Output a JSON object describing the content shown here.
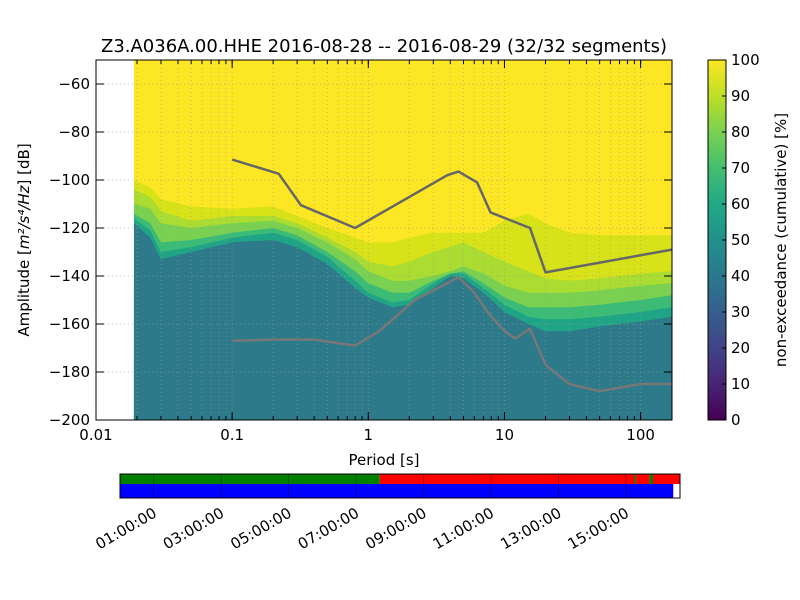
{
  "chart_data": {
    "type": "heatmap",
    "title": "Z3.A036A.00.HHE   2016-08-28 -- 2016-08-29  (32/32 segments)",
    "xlabel": "Period [s]",
    "ylabel_prefix": "Amplitude [",
    "ylabel_math": "m²/s⁴/Hz",
    "ylabel_suffix": "] [dB]",
    "x_scale": "log",
    "xlim": [
      0.01,
      170
    ],
    "ylim": [
      -200,
      -50
    ],
    "x_ticks": [
      {
        "value": 0.01,
        "label": "0.01"
      },
      {
        "value": 0.1,
        "label": "0.1"
      },
      {
        "value": 1,
        "label": "1"
      },
      {
        "value": 10,
        "label": "10"
      },
      {
        "value": 100,
        "label": "100"
      }
    ],
    "y_ticks": [
      {
        "value": -60,
        "label": "−60"
      },
      {
        "value": -80,
        "label": "−80"
      },
      {
        "value": -100,
        "label": "−100"
      },
      {
        "value": -120,
        "label": "−120"
      },
      {
        "value": -140,
        "label": "−140"
      },
      {
        "value": -160,
        "label": "−160"
      },
      {
        "value": -180,
        "label": "−180"
      },
      {
        "value": -200,
        "label": "−200"
      }
    ],
    "grid": true,
    "data_period_start": 0.019,
    "colorbar": {
      "label": "non-exceedance (cumulative) [%]",
      "range": [
        0,
        100
      ],
      "ticks": [
        {
          "value": 0,
          "label": "0"
        },
        {
          "value": 10,
          "label": "10"
        },
        {
          "value": 20,
          "label": "20"
        },
        {
          "value": 30,
          "label": "30"
        },
        {
          "value": 40,
          "label": "40"
        },
        {
          "value": 50,
          "label": "50"
        },
        {
          "value": 60,
          "label": "60"
        },
        {
          "value": 70,
          "label": "70"
        },
        {
          "value": 80,
          "label": "80"
        },
        {
          "value": 90,
          "label": "90"
        },
        {
          "value": 100,
          "label": "100"
        }
      ]
    },
    "level_bands": [
      {
        "level": 40,
        "color": "#2d7a8a",
        "upper": [
          [
            0.019,
            -118
          ],
          [
            0.025,
            -124
          ],
          [
            0.03,
            -133
          ],
          [
            0.05,
            -130
          ],
          [
            0.1,
            -126
          ],
          [
            0.2,
            -125
          ],
          [
            0.3,
            -128
          ],
          [
            0.5,
            -135
          ],
          [
            0.8,
            -145
          ],
          [
            1,
            -149
          ],
          [
            1.5,
            -153
          ],
          [
            2,
            -152
          ],
          [
            3,
            -145
          ],
          [
            4,
            -140
          ],
          [
            5,
            -141
          ],
          [
            7,
            -147
          ],
          [
            10,
            -155
          ],
          [
            15,
            -160
          ],
          [
            20,
            -163
          ],
          [
            30,
            -163
          ],
          [
            50,
            -161
          ],
          [
            100,
            -159
          ],
          [
            170,
            -157
          ]
        ]
      },
      {
        "level": 50,
        "color": "#20a486",
        "upper": [
          [
            0.019,
            -116
          ],
          [
            0.025,
            -121
          ],
          [
            0.03,
            -130
          ],
          [
            0.05,
            -128
          ],
          [
            0.1,
            -124
          ],
          [
            0.2,
            -122
          ],
          [
            0.3,
            -125
          ],
          [
            0.5,
            -132
          ],
          [
            0.8,
            -142
          ],
          [
            1,
            -147
          ],
          [
            1.5,
            -151
          ],
          [
            2,
            -150
          ],
          [
            3,
            -143
          ],
          [
            4,
            -139
          ],
          [
            5,
            -139
          ],
          [
            7,
            -145
          ],
          [
            10,
            -152
          ],
          [
            15,
            -157
          ],
          [
            20,
            -158
          ],
          [
            30,
            -158
          ],
          [
            50,
            -157
          ],
          [
            100,
            -155
          ],
          [
            170,
            -153
          ]
        ]
      },
      {
        "level": 60,
        "color": "#3bbb75",
        "upper": [
          [
            0.019,
            -114
          ],
          [
            0.025,
            -118
          ],
          [
            0.03,
            -126
          ],
          [
            0.05,
            -125
          ],
          [
            0.1,
            -122
          ],
          [
            0.2,
            -120
          ],
          [
            0.3,
            -123
          ],
          [
            0.5,
            -130
          ],
          [
            0.8,
            -138
          ],
          [
            1,
            -143
          ],
          [
            1.5,
            -147
          ],
          [
            2,
            -147
          ],
          [
            3,
            -142
          ],
          [
            4,
            -139
          ],
          [
            5,
            -138
          ],
          [
            7,
            -143
          ],
          [
            10,
            -149
          ],
          [
            15,
            -153
          ],
          [
            20,
            -153
          ],
          [
            30,
            -153
          ],
          [
            50,
            -152
          ],
          [
            100,
            -150
          ],
          [
            170,
            -148
          ]
        ]
      },
      {
        "level": 70,
        "color": "#7ad151",
        "upper": [
          [
            0.019,
            -110
          ],
          [
            0.025,
            -112
          ],
          [
            0.03,
            -118
          ],
          [
            0.05,
            -120
          ],
          [
            0.1,
            -118
          ],
          [
            0.2,
            -117
          ],
          [
            0.3,
            -120
          ],
          [
            0.5,
            -126
          ],
          [
            0.8,
            -133
          ],
          [
            1,
            -138
          ],
          [
            1.5,
            -142
          ],
          [
            2,
            -142
          ],
          [
            3,
            -140
          ],
          [
            4,
            -138
          ],
          [
            5,
            -136
          ],
          [
            7,
            -139
          ],
          [
            10,
            -144
          ],
          [
            15,
            -147
          ],
          [
            20,
            -147
          ],
          [
            30,
            -147
          ],
          [
            50,
            -146
          ],
          [
            100,
            -144
          ],
          [
            170,
            -143
          ]
        ]
      },
      {
        "level": 80,
        "color": "#aadc32",
        "upper": [
          [
            0.019,
            -104
          ],
          [
            0.025,
            -107
          ],
          [
            0.03,
            -113
          ],
          [
            0.05,
            -117
          ],
          [
            0.1,
            -115
          ],
          [
            0.2,
            -115
          ],
          [
            0.3,
            -118
          ],
          [
            0.5,
            -124
          ],
          [
            0.8,
            -130
          ],
          [
            1,
            -134
          ],
          [
            1.5,
            -136
          ],
          [
            2,
            -134
          ],
          [
            3,
            -130
          ],
          [
            5,
            -126
          ],
          [
            7,
            -130
          ],
          [
            10,
            -134
          ],
          [
            15,
            -138
          ],
          [
            20,
            -141
          ],
          [
            30,
            -142
          ],
          [
            50,
            -141
          ],
          [
            100,
            -139
          ],
          [
            170,
            -138
          ]
        ]
      },
      {
        "level": 90,
        "color": "#d8e219",
        "upper": [
          [
            0.019,
            -100
          ],
          [
            0.025,
            -103
          ],
          [
            0.03,
            -108
          ],
          [
            0.05,
            -111
          ],
          [
            0.1,
            -112
          ],
          [
            0.2,
            -111
          ],
          [
            0.3,
            -115
          ],
          [
            0.5,
            -120
          ],
          [
            0.8,
            -124
          ],
          [
            1,
            -126
          ],
          [
            1.5,
            -126
          ],
          [
            2,
            -124
          ],
          [
            3,
            -122
          ],
          [
            5,
            -122
          ],
          [
            7,
            -122
          ],
          [
            10,
            -117
          ],
          [
            15,
            -114
          ],
          [
            20,
            -118
          ],
          [
            30,
            -122
          ],
          [
            50,
            -123
          ],
          [
            100,
            -123
          ],
          [
            170,
            -123
          ]
        ]
      }
    ],
    "top_color": "#fde725",
    "series": [
      {
        "kind": "noise-model-high",
        "color": "#666666",
        "points": [
          [
            0.1,
            -91.5
          ],
          [
            0.22,
            -97.4
          ],
          [
            0.32,
            -110.5
          ],
          [
            0.8,
            -120
          ],
          [
            3.8,
            -98
          ],
          [
            4.6,
            -96.5
          ],
          [
            6.3,
            -101
          ],
          [
            7.9,
            -113.5
          ],
          [
            15.4,
            -120
          ],
          [
            20,
            -138.5
          ],
          [
            170,
            -129
          ]
        ]
      },
      {
        "kind": "noise-model-low",
        "color": "#777777",
        "points": [
          [
            0.1,
            -167
          ],
          [
            0.2,
            -166.5
          ],
          [
            0.4,
            -166.5
          ],
          [
            0.8,
            -169
          ],
          [
            1.2,
            -163
          ],
          [
            2.2,
            -150
          ],
          [
            3.5,
            -144
          ],
          [
            4.6,
            -140.5
          ],
          [
            6,
            -147
          ],
          [
            7.5,
            -155
          ],
          [
            10,
            -163
          ],
          [
            12,
            -166
          ],
          [
            15.4,
            -162
          ],
          [
            20,
            -177
          ],
          [
            30,
            -185
          ],
          [
            50,
            -188
          ],
          [
            100,
            -185
          ],
          [
            170,
            -185
          ]
        ]
      }
    ],
    "timeline": {
      "start_hour": 0.0,
      "end_hour": 16.6,
      "tick_labels": [
        "01:00:00",
        "03:00:00",
        "05:00:00",
        "07:00:00",
        "09:00:00",
        "11:00:00",
        "13:00:00",
        "15:00:00"
      ],
      "tick_hours": [
        1,
        3,
        5,
        7,
        9,
        11,
        13,
        15
      ],
      "top_bar": [
        {
          "from": 0.0,
          "to": 7.7,
          "color": "#008000"
        },
        {
          "from": 7.7,
          "to": 15.25,
          "color": "#ff0000"
        },
        {
          "from": 15.25,
          "to": 15.3,
          "color": "#008000"
        },
        {
          "from": 15.3,
          "to": 15.7,
          "color": "#ff0000"
        },
        {
          "from": 15.7,
          "to": 15.8,
          "color": "#008000"
        },
        {
          "from": 15.8,
          "to": 16.6,
          "color": "#ff0000"
        }
      ],
      "bottom_bar": [
        {
          "from": 0.0,
          "to": 16.4,
          "color": "#0000ff"
        }
      ]
    }
  }
}
